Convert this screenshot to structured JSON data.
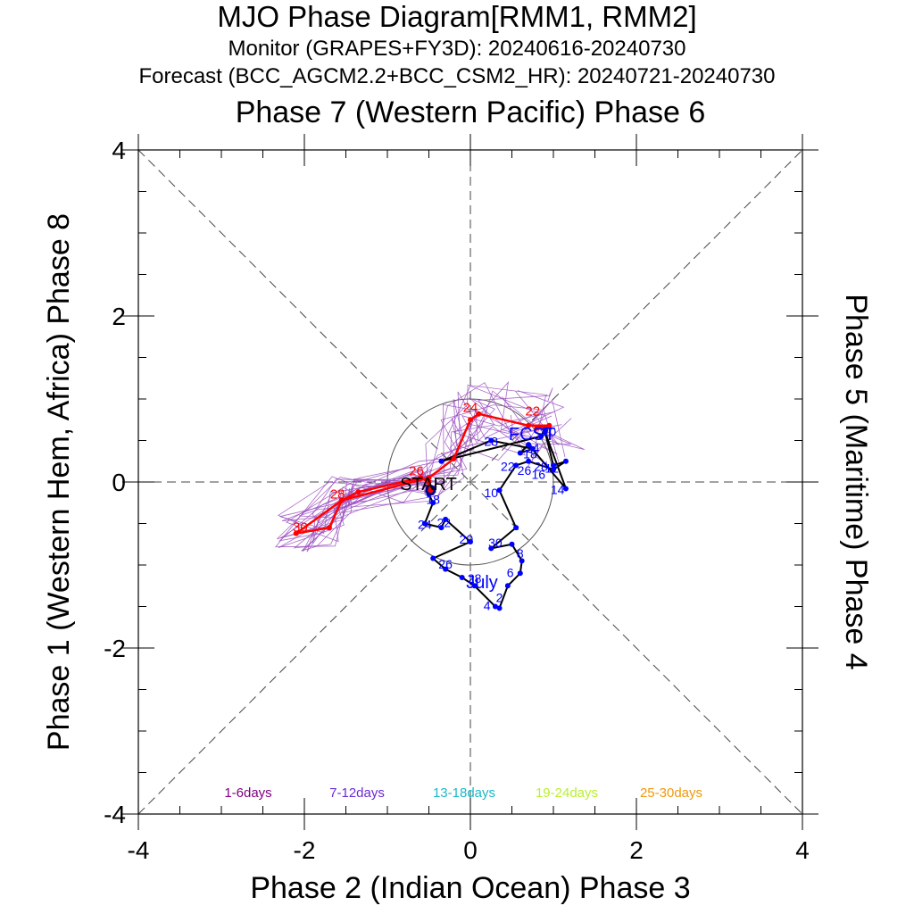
{
  "header": {
    "title": "MJO Phase Diagram[RMM1, RMM2]",
    "monitor": "Monitor (GRAPES+FY3D): 20240616-20240730",
    "forecast": "Forecast (BCC_AGCM2.2+BCC_CSM2_HR): 20240721-20240730"
  },
  "labels": {
    "top": "Phase 7 (Western Pacific) Phase 6",
    "bottom": "Phase 2 (Indian Ocean) Phase 3",
    "left": "Phase 1 (Western Hem, Africa) Phase 8",
    "right": "Phase 5 (Maritime) Phase 4",
    "start": "START",
    "month_july": "July",
    "month_fcst": "FCST"
  },
  "legend": [
    {
      "label": "1-6days",
      "color": "#800080"
    },
    {
      "label": "7-12days",
      "color": "#6a2ad6"
    },
    {
      "label": "13-18days",
      "color": "#1ab8c8"
    },
    {
      "label": "19-24days",
      "color": "#b8f02a"
    },
    {
      "label": "25-30days",
      "color": "#f0980a"
    }
  ],
  "colors": {
    "observed": "#000000",
    "observed_points": "#0000ff",
    "forecast_mean": "#ff0000",
    "ensemble": "#9a50c0"
  },
  "chart_data": {
    "type": "scatter",
    "xlabel": "Phase 2 (Indian Ocean) Phase 3",
    "ylabel": "Phase 1 (Western Hem, Africa) Phase 8",
    "xlim": [
      -4,
      4
    ],
    "ylim": [
      -4,
      4
    ],
    "xticks": [
      "-4",
      "-2",
      "0",
      "2",
      "4"
    ],
    "yticks": [
      "-4",
      "-2",
      "0",
      "2",
      "4"
    ],
    "unit_circle_radius": 1,
    "observed": [
      [
        -0.48,
        -0.1
      ],
      [
        -0.5,
        -0.15
      ],
      [
        -0.45,
        -0.25
      ],
      [
        -0.55,
        -0.5
      ],
      [
        -0.35,
        -0.55
      ],
      [
        -0.3,
        -0.45
      ],
      [
        0.0,
        -0.72
      ],
      [
        -0.45,
        -0.92
      ],
      [
        -0.3,
        -1.05
      ],
      [
        -0.1,
        -1.15
      ],
      [
        0.05,
        -1.25
      ],
      [
        0.3,
        -1.5
      ],
      [
        0.35,
        -1.52
      ],
      [
        0.45,
        -1.25
      ],
      [
        0.6,
        -1.1
      ],
      [
        0.62,
        -0.95
      ],
      [
        0.5,
        -0.75
      ],
      [
        0.25,
        -0.8
      ],
      [
        0.55,
        -0.55
      ],
      [
        0.35,
        -0.1
      ],
      [
        0.55,
        0.2
      ],
      [
        0.7,
        0.25
      ],
      [
        1.0,
        0.15
      ],
      [
        1.15,
        0.25
      ],
      [
        1.0,
        0.2
      ],
      [
        0.9,
        0.6
      ],
      [
        1.15,
        -0.08
      ],
      [
        0.7,
        0.45
      ],
      [
        0.6,
        0.35
      ],
      [
        0.75,
        0.4
      ],
      [
        0.25,
        0.5
      ],
      [
        -0.35,
        0.25
      ],
      [
        0.85,
        0.55
      ],
      [
        0.9,
        0.65
      ]
    ],
    "observed_day_labels": [
      {
        "day": "20",
        "x": 0.95,
        "y": 0.62
      },
      {
        "day": "22",
        "x": 0.45,
        "y": 0.2
      },
      {
        "day": "24",
        "x": 0.75,
        "y": 0.42
      },
      {
        "day": "26",
        "x": 0.65,
        "y": 0.15
      },
      {
        "day": "28",
        "x": 0.85,
        "y": 0.2
      },
      {
        "day": "10",
        "x": 0.25,
        "y": -0.12
      },
      {
        "day": "12",
        "x": 0.98,
        "y": 0.18
      },
      {
        "day": "14",
        "x": 1.05,
        "y": -0.08
      },
      {
        "day": "16",
        "x": 0.82,
        "y": 0.1
      },
      {
        "day": "18",
        "x": 0.72,
        "y": 0.35
      },
      {
        "day": "2",
        "x": 0.35,
        "y": -1.38
      },
      {
        "day": "4",
        "x": 0.2,
        "y": -1.48
      },
      {
        "day": "6",
        "x": 0.48,
        "y": -1.08
      },
      {
        "day": "8",
        "x": 0.6,
        "y": -0.85
      },
      {
        "day": "30",
        "x": 0.3,
        "y": -0.72
      },
      {
        "day": "24",
        "x": -0.55,
        "y": -0.5
      },
      {
        "day": "22",
        "x": -0.32,
        "y": -0.48
      },
      {
        "day": "20",
        "x": -0.05,
        "y": -0.68
      },
      {
        "day": "26",
        "x": -0.3,
        "y": -0.98
      },
      {
        "day": "28",
        "x": 0.05,
        "y": -1.15
      },
      {
        "day": "18",
        "x": -0.45,
        "y": -0.2
      },
      {
        "day": "28",
        "x": 0.25,
        "y": 0.5
      }
    ],
    "forecast_mean": [
      [
        -0.48,
        -0.1
      ],
      [
        -0.5,
        0.0
      ],
      [
        -0.6,
        0.05
      ],
      [
        -1.35,
        -0.12
      ],
      [
        -1.55,
        -0.22
      ],
      [
        -1.7,
        -0.55
      ],
      [
        -2.1,
        -0.62
      ],
      [
        -1.55,
        -0.22
      ],
      [
        -0.5,
        0.05
      ],
      [
        -0.2,
        0.28
      ],
      [
        0.0,
        0.75
      ],
      [
        0.1,
        0.82
      ],
      [
        0.7,
        0.68
      ],
      [
        0.95,
        0.68
      ],
      [
        0.8,
        0.65
      ]
    ],
    "forecast_day_labels": [
      {
        "day": "24",
        "x": 0.0,
        "y": 0.82
      },
      {
        "day": "22",
        "x": 0.75,
        "y": 0.78
      },
      {
        "day": "26",
        "x": -0.65,
        "y": 0.06
      },
      {
        "day": "28",
        "x": -1.6,
        "y": -0.22
      },
      {
        "day": "30",
        "x": -2.05,
        "y": -0.62
      }
    ]
  }
}
